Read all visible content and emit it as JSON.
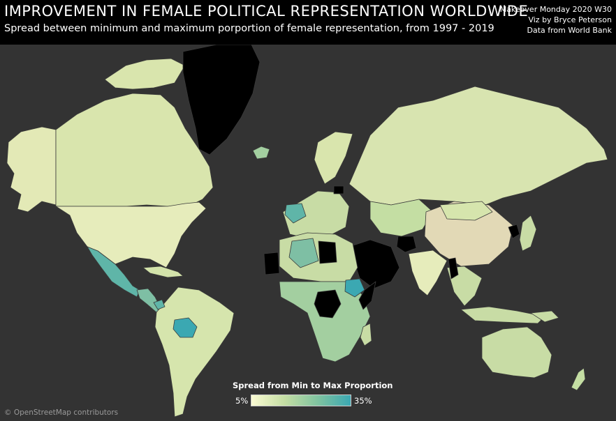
{
  "header": {
    "title": "IMPROVEMENT IN FEMALE POLITICAL REPRESENTATION WORLDWIDE",
    "subtitle": "Spread between minimum and maximum porportion of female representation, from 1997 - 2019"
  },
  "credits": {
    "line1": "Makeover Monday 2020 W30",
    "line2": "Viz by Bryce Peterson",
    "line3": "Data from World Bank"
  },
  "legend": {
    "title": "Spread from Min to Max Proportion",
    "min_label": "5%",
    "max_label": "35%",
    "color_low": "#fbfbd3",
    "color_high": "#3ba8b2"
  },
  "attribution": "© OpenStreetMap contributors",
  "colors": {
    "background": "#000000",
    "ocean": "#333333",
    "no_data": "#000000",
    "low": "#e6ecb8",
    "mid_low": "#c8dca5",
    "mid": "#a3cfa0",
    "high": "#5fb5a8",
    "max": "#3ba8b2"
  }
}
